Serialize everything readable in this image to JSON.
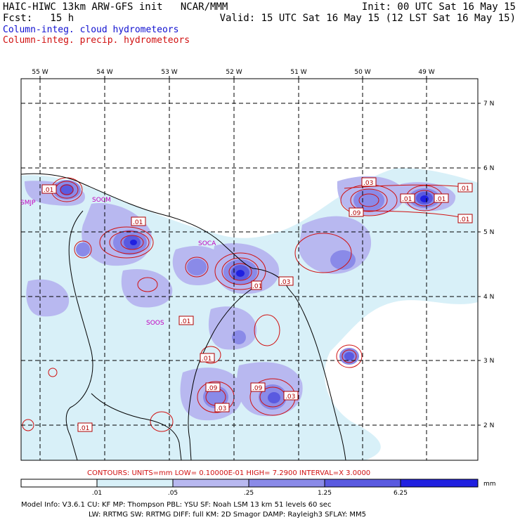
{
  "header": {
    "title_left": "HAIC-HIWC 13km ARW-GFS init   NCAR/MMM",
    "forecast": "Fcst:   15 h",
    "init": "Init: 00 UTC Sat 16 May 15",
    "valid": "Valid: 15 UTC Sat 16 May 15 (12 LST Sat 16 May 15)",
    "legend_cloud": "Column-integ. cloud hydrometeors",
    "legend_precip": "Column-integ. precip. hydrometeors"
  },
  "colors": {
    "cloud": "#1010d0",
    "precip": "#d01010",
    "station": "#c000c0",
    "shade1": "#d8f0f8",
    "shade2": "#b8b8f0",
    "shade3": "#8a8ae8",
    "shade4": "#5a5ae0",
    "shade5": "#2020e0"
  },
  "axes": {
    "lon_labels": [
      "55 W",
      "54 W",
      "53 W",
      "52 W",
      "51 W",
      "50 W",
      "49 W"
    ],
    "lat_labels": [
      "7 N",
      "6 N",
      "5 N",
      "4 N",
      "3 N",
      "2 N"
    ]
  },
  "stations": [
    "SMJP",
    "SOCM",
    "SOCA",
    "SOOS"
  ],
  "contour_labels": [
    ".01",
    ".01",
    ".01",
    ".01",
    ".03",
    ".09",
    ".01",
    ".01",
    ".01",
    ".03",
    ".01",
    ".09",
    ".03",
    ".09",
    ".03",
    ".01",
    ".01"
  ],
  "contour_info": {
    "line": "CONTOURS:  UNITS=mm  LOW= 0.10000E-01  HIGH=  7.2900     INTERVAL=X  3.0000"
  },
  "colorbar": {
    "labels": [
      ".01",
      ".05",
      ".25",
      "1.25",
      "6.25"
    ],
    "units": "mm"
  },
  "model_info": {
    "line1": "Model Info: V3.6.1    CU: KF      MP: Thompson     PBL: YSU      SF: Noah LSM     13 km    51 levels   60 sec",
    "line2": "LW: RRTMG    SW: RRTMG   DIFF: full    KM: 2D Smagor DAMP: Rayleigh3   SFLAY: MM5"
  }
}
